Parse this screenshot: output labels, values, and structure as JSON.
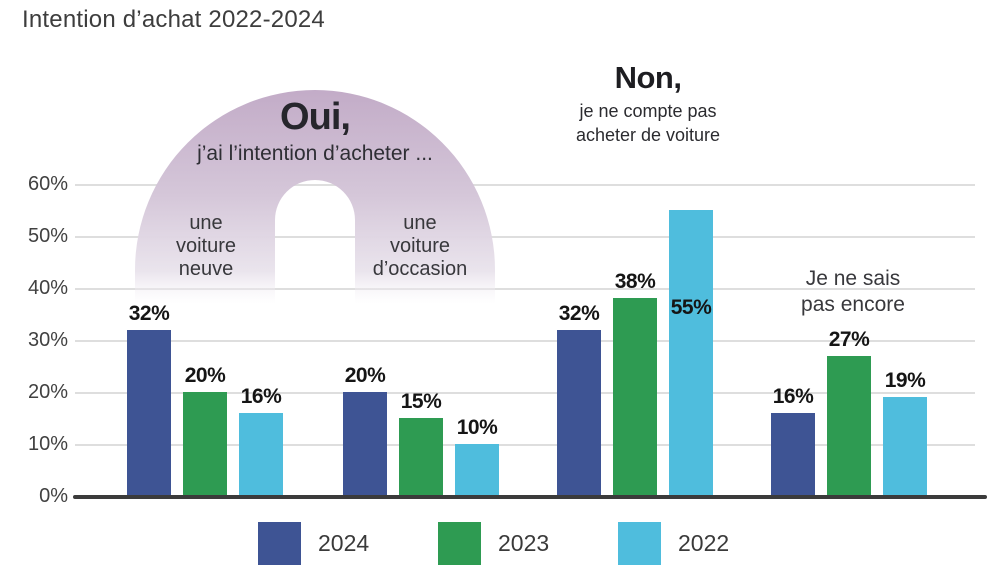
{
  "title": "Intention d’achat 2022-2024",
  "annotations": {
    "oui_heading": "Oui,",
    "oui_subtitle": "j’ai l’intention d’acheter ...",
    "neuve": "une\nvoiture\nneuve",
    "occasion": "une\nvoiture\nd’occasion",
    "non_heading": "Non,",
    "non_subtitle": "je ne compte pas\nacheter de voiture",
    "unsure": "Je ne sais\npas encore"
  },
  "colors": {
    "arch_top": "#c2abc7",
    "arch_mid": "#d5c7d9",
    "arch_bottom": "#e9e3ec",
    "arch_fade": "#f4f0f6",
    "axis": "#3b3b3b",
    "grid": "#dedede",
    "value_label": "#151515"
  },
  "chart_data": {
    "type": "bar",
    "title": "Intention d’achat 2022-2024",
    "categories": [
      "une voiture neuve",
      "une voiture d’occasion",
      "Non, je ne compte pas acheter de voiture",
      "Je ne sais pas encore"
    ],
    "series": [
      {
        "name": "2024",
        "color": "#3E5494",
        "values": [
          32,
          20,
          32,
          16
        ]
      },
      {
        "name": "2023",
        "color": "#2E9B52",
        "values": [
          20,
          15,
          38,
          27
        ]
      },
      {
        "name": "2022",
        "color": "#4FBDDD",
        "values": [
          16,
          10,
          55,
          19
        ]
      }
    ],
    "value_label_format": "{v}%",
    "xlabel": "",
    "ylabel": "",
    "ylim": [
      0,
      60
    ],
    "yticks": [
      "0%",
      "10%",
      "20%",
      "30%",
      "40%",
      "50%",
      "60%"
    ],
    "grid": true,
    "legend_position": "bottom"
  }
}
